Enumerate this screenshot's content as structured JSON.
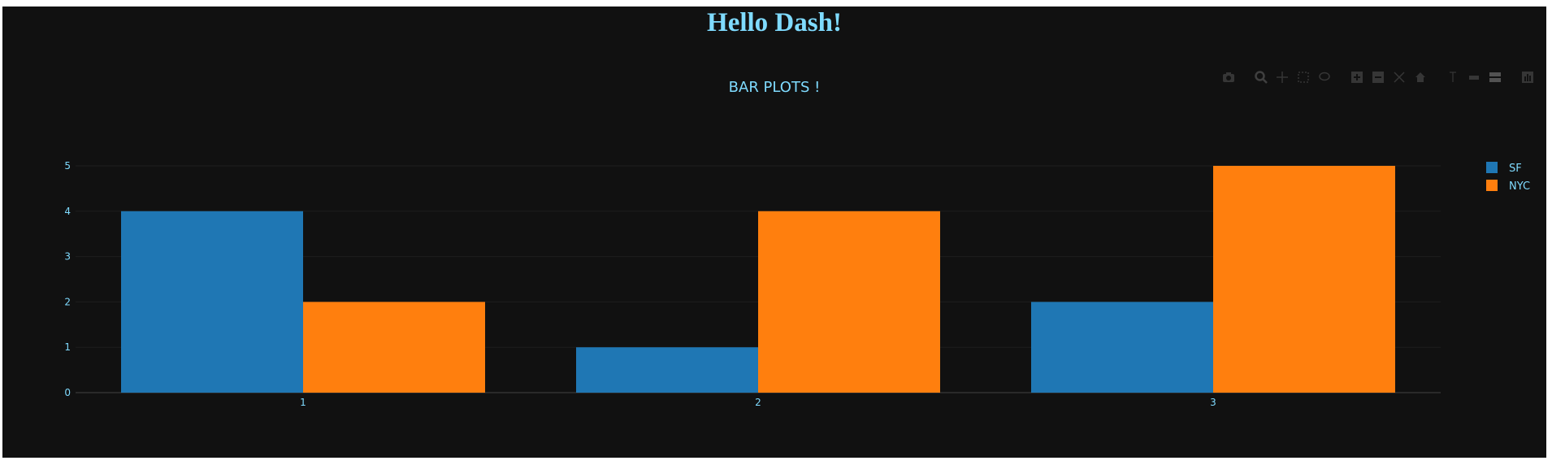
{
  "page": {
    "heading": "Hello Dash!",
    "heading_color": "#7FDBFF",
    "background": "#111111",
    "text_color": "#7FDBFF"
  },
  "modebar": {
    "icons": [
      "camera-icon",
      "zoom-icon",
      "pan-icon",
      "box-select-icon",
      "lasso-select-icon",
      "zoom-in-icon",
      "zoom-out-icon",
      "autoscale-icon",
      "reset-axes-icon",
      "spike-lines-icon",
      "hover-closest-icon",
      "hover-compare-icon",
      "plotly-logo-icon"
    ]
  },
  "chart_data": {
    "type": "bar",
    "title": "BAR PLOTS !",
    "xlabel": "",
    "ylabel": "",
    "categories": [
      "1",
      "2",
      "3"
    ],
    "series": [
      {
        "name": "SF",
        "values": [
          4,
          1,
          2
        ],
        "color": "#1f77b4"
      },
      {
        "name": "NYC",
        "values": [
          2,
          4,
          5
        ],
        "color": "#ff7f0e"
      }
    ],
    "ylim": [
      0,
      5
    ],
    "yticks": [
      "0",
      "1",
      "2",
      "3",
      "4",
      "5"
    ],
    "grid": true,
    "legend_position": "top-right",
    "barmode": "group"
  }
}
